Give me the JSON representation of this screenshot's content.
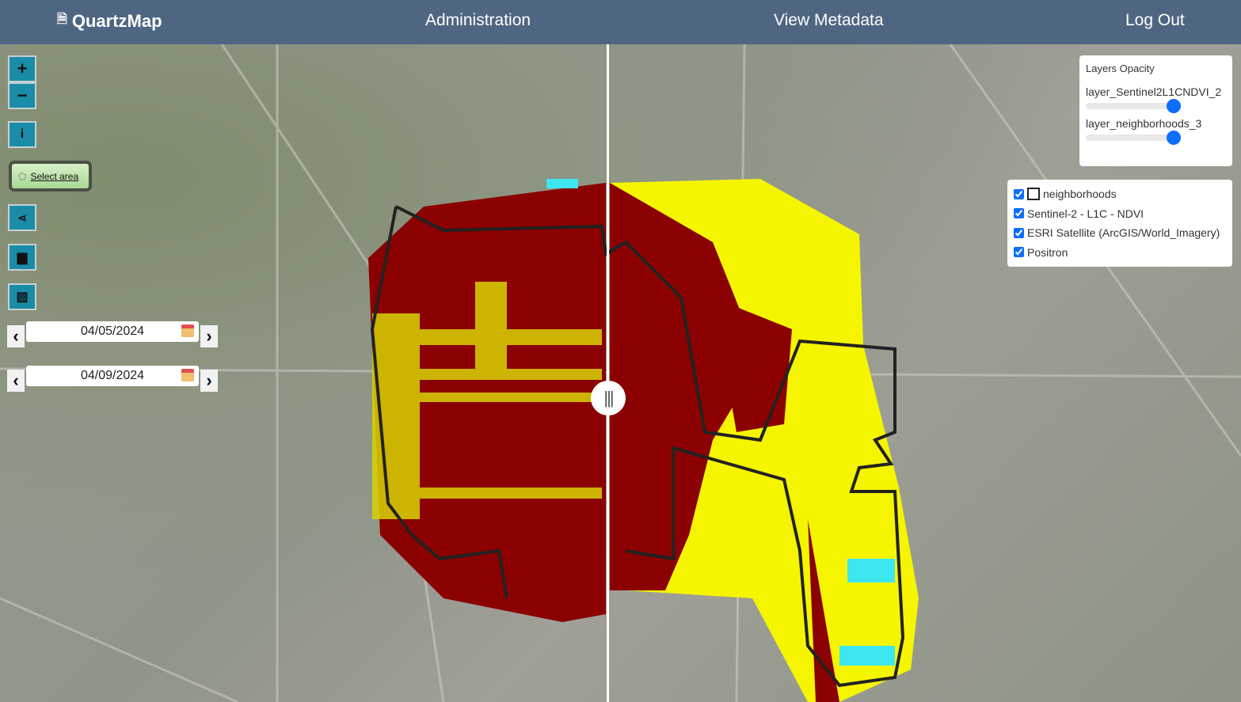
{
  "nav": {
    "brand": "QuartzMap",
    "brand_icon": "document-icon",
    "links": [
      "Administration",
      "View Metadata",
      "Log Out"
    ]
  },
  "controls": {
    "zoom_in": "+",
    "zoom_out": "−",
    "info": "i",
    "select_area": "Select area",
    "share_icon": "share-icon",
    "print_icon": "print-icon",
    "image_icon": "image-icon"
  },
  "dates": [
    "04/05/2024",
    "04/09/2024"
  ],
  "opacity": {
    "title": "Layers Opacity",
    "layers": [
      {
        "label": "layer_Sentinel2L1CNDVI_2",
        "value": 1
      },
      {
        "label": "layer_neighborhoods_3",
        "value": 1
      }
    ]
  },
  "layers": [
    {
      "label": "neighborhoods",
      "checked": true
    },
    {
      "label": "Sentinel-2 - L1C - NDVI",
      "checked": true
    },
    {
      "label": "ESRI Satellite (ArcGIS/World_Imagery)",
      "checked": true
    },
    {
      "label": "Positron",
      "checked": true
    }
  ],
  "colors": {
    "nav": "#4e6682",
    "control": "#1a8ca8",
    "ndvi_low": "#8b0000",
    "ndvi_mid": "#f5f500",
    "ndvi_water": "#3ee6f0"
  }
}
